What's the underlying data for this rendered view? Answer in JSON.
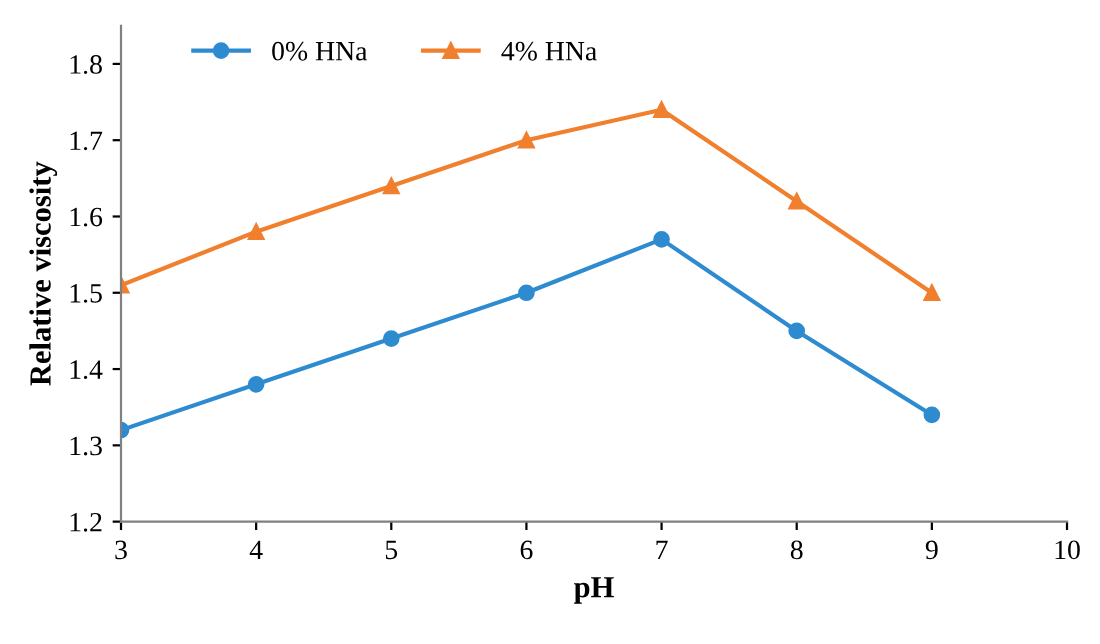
{
  "chart_data": {
    "type": "line",
    "xlabel": "pH",
    "ylabel": "Relative viscosity",
    "x": [
      3,
      4,
      5,
      6,
      7,
      8,
      9
    ],
    "series": [
      {
        "name": "0% HNa",
        "color": "#2e8bd0",
        "values": [
          1.32,
          1.38,
          1.44,
          1.5,
          1.57,
          1.45,
          1.34
        ]
      },
      {
        "name": "4% HNa",
        "color": "#f07f2e",
        "values": [
          1.51,
          1.58,
          1.64,
          1.7,
          1.74,
          1.62,
          1.5
        ]
      }
    ],
    "xlim": [
      3,
      10
    ],
    "xticks": [
      3,
      4,
      5,
      6,
      7,
      8,
      9,
      10
    ],
    "ylim": [
      1.2,
      1.85
    ],
    "yticks": [
      {
        "value": 1.2,
        "label": "1.2"
      },
      {
        "value": 1.3,
        "label": "1.3"
      },
      {
        "value": 1.4,
        "label": "1.4"
      },
      {
        "value": 1.5,
        "label": "1.5"
      },
      {
        "value": 1.6,
        "label": "1.6"
      },
      {
        "value": 1.7,
        "label": "1.7"
      },
      {
        "value": 1.8,
        "label": "1.8"
      }
    ],
    "grid": false,
    "legend": "top left",
    "marker": [
      "circle",
      "triangle"
    ],
    "line_style": "solid"
  }
}
